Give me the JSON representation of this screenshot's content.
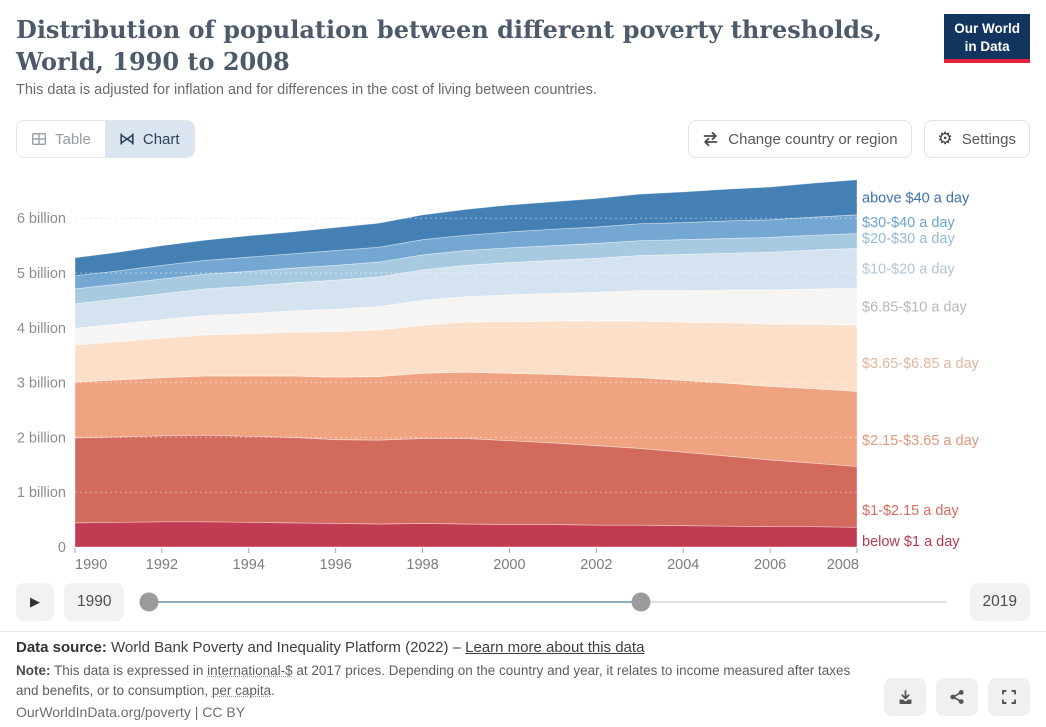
{
  "header": {
    "title": "Distribution of population between different poverty thresholds, World, 1990 to 2008",
    "subtitle": "This data is adjusted for inflation and for differences in the cost of living between countries.",
    "logo_line1": "Our World",
    "logo_line2": "in Data"
  },
  "toolbar": {
    "tabs": [
      {
        "label": "Table"
      },
      {
        "label": "Chart"
      }
    ],
    "change_country_label": "Change country or region",
    "settings_label": "Settings"
  },
  "chart_data": {
    "type": "area",
    "stacked": true,
    "title": "Distribution of population between different poverty thresholds, World, 1990 to 2008",
    "xlabel": "",
    "ylabel": "",
    "grid": "dashed horizontal",
    "legend_position": "right",
    "xlim": [
      1990,
      2008
    ],
    "ylim": [
      0,
      7.05
    ],
    "unit": "billion people",
    "years": [
      1990,
      1991,
      1992,
      1993,
      1994,
      1995,
      1996,
      1997,
      1998,
      1999,
      2000,
      2001,
      2002,
      2003,
      2004,
      2005,
      2006,
      2007,
      2008
    ],
    "x_ticks": [
      1990,
      1992,
      1994,
      1996,
      1998,
      2000,
      2002,
      2004,
      2006,
      2008
    ],
    "y_ticks": [
      {
        "value": 0,
        "label": "0"
      },
      {
        "value": 1,
        "label": "1 billion"
      },
      {
        "value": 2,
        "label": "2 billion"
      },
      {
        "value": 3,
        "label": "3 billion"
      },
      {
        "value": 4,
        "label": "4 billion"
      },
      {
        "value": 5,
        "label": "5 billion"
      },
      {
        "value": 6,
        "label": "6 billion"
      }
    ],
    "series": [
      {
        "name": "below $1 a day",
        "color": "#c13b52",
        "label_color": "#b33b51",
        "values": [
          0.44,
          0.45,
          0.46,
          0.46,
          0.45,
          0.44,
          0.43,
          0.42,
          0.43,
          0.42,
          0.41,
          0.41,
          0.4,
          0.4,
          0.39,
          0.38,
          0.37,
          0.37,
          0.36
        ]
      },
      {
        "name": "$1-$2.15 a day",
        "color": "#d36a5e",
        "label_color": "#d56a5d",
        "values": [
          1.55,
          1.56,
          1.57,
          1.58,
          1.57,
          1.56,
          1.53,
          1.53,
          1.55,
          1.56,
          1.53,
          1.49,
          1.45,
          1.4,
          1.34,
          1.28,
          1.22,
          1.16,
          1.11
        ]
      },
      {
        "name": "$2.15-$3.65 a day",
        "color": "#efa380",
        "label_color": "#e0977a",
        "values": [
          1.02,
          1.04,
          1.06,
          1.08,
          1.1,
          1.12,
          1.14,
          1.16,
          1.19,
          1.21,
          1.23,
          1.25,
          1.27,
          1.29,
          1.31,
          1.33,
          1.34,
          1.36,
          1.37
        ]
      },
      {
        "name": "$3.65-$6.85 a day",
        "color": "#fbdfc8",
        "label_color": "#e0b69e",
        "values": [
          0.67,
          0.7,
          0.72,
          0.75,
          0.77,
          0.8,
          0.83,
          0.85,
          0.88,
          0.91,
          0.94,
          0.97,
          1.0,
          1.03,
          1.06,
          1.1,
          1.14,
          1.17,
          1.21
        ]
      },
      {
        "name": "$6.85-$10 a day",
        "color": "#f6f5f3",
        "label_color": "#b8b8b3",
        "values": [
          0.31,
          0.32,
          0.34,
          0.36,
          0.37,
          0.39,
          0.41,
          0.43,
          0.45,
          0.47,
          0.49,
          0.51,
          0.53,
          0.56,
          0.58,
          0.6,
          0.62,
          0.65,
          0.67
        ]
      },
      {
        "name": "$10-$20 a day",
        "color": "#d4e3ef",
        "label_color": "#b3c4d2",
        "values": [
          0.45,
          0.46,
          0.47,
          0.48,
          0.5,
          0.51,
          0.53,
          0.54,
          0.56,
          0.57,
          0.59,
          0.6,
          0.62,
          0.64,
          0.66,
          0.67,
          0.69,
          0.71,
          0.73
        ]
      },
      {
        "name": "$20-$30 a day",
        "color": "#a7cae1",
        "label_color": "#94bad7",
        "values": [
          0.27,
          0.27,
          0.27,
          0.27,
          0.27,
          0.27,
          0.27,
          0.27,
          0.27,
          0.27,
          0.27,
          0.27,
          0.27,
          0.27,
          0.27,
          0.27,
          0.27,
          0.27,
          0.27
        ]
      },
      {
        "name": "$30-$40 a day",
        "color": "#74a8d2",
        "label_color": "#6ba3cf",
        "values": [
          0.24,
          0.24,
          0.25,
          0.25,
          0.26,
          0.26,
          0.27,
          0.27,
          0.28,
          0.28,
          0.29,
          0.3,
          0.3,
          0.31,
          0.31,
          0.32,
          0.32,
          0.33,
          0.34
        ]
      },
      {
        "name": "above $40 a day",
        "color": "#4580b4",
        "label_color": "#3c72ac",
        "values": [
          0.33,
          0.34,
          0.36,
          0.37,
          0.39,
          0.4,
          0.42,
          0.44,
          0.45,
          0.47,
          0.49,
          0.5,
          0.52,
          0.54,
          0.56,
          0.58,
          0.6,
          0.62,
          0.64
        ]
      }
    ]
  },
  "timeline": {
    "start_year": "1990",
    "end_year": "2019"
  },
  "footer": {
    "source_label": "Data source:",
    "source_text": " World Bank Poverty and Inequality Platform (2022) – ",
    "source_link": "Learn more about this data",
    "note_label": "Note:",
    "note_part1": " This data is expressed in ",
    "note_dotted1": "international-$",
    "note_part2": " at 2017 prices. Depending on the country and year, it relates to income measured after taxes and benefits, or to consumption, ",
    "note_dotted2": "per capita",
    "note_part3": ".",
    "citation_url": "OurWorldInData.org/poverty",
    "citation_sep": " | ",
    "citation_license": "CC BY"
  }
}
